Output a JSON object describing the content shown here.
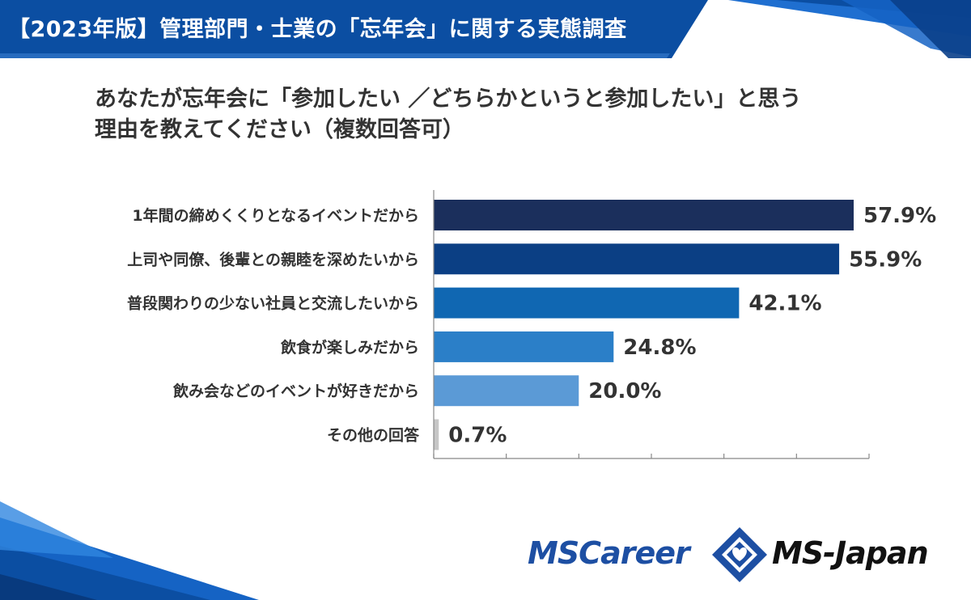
{
  "header": {
    "title": "【2023年版】管理部門・士業の「忘年会」に関する実態調査"
  },
  "question": {
    "line1": "あなたが忘年会に「参加したい ／どちらかというと参加したい」と思う",
    "line2": "理由を教えてください（複数回答可）"
  },
  "chart_data": {
    "type": "bar",
    "orientation": "horizontal",
    "categories": [
      "1年間の締めくくりとなるイベントだから",
      "上司や同僚、後輩との親睦を深めたいから",
      "普段関わりの少ない社員と交流したいから",
      "飲食が楽しみだから",
      "飲み会などのイベントが好きだから",
      "その他の回答"
    ],
    "values": [
      57.9,
      55.9,
      42.1,
      24.8,
      20.0,
      0.7
    ],
    "value_labels": [
      "57.9%",
      "55.9%",
      "42.1%",
      "24.8%",
      "20.0%",
      "0.7%"
    ],
    "colors": [
      "#1b2f5c",
      "#0b3f84",
      "#1067b2",
      "#2b7fc8",
      "#5b9ad6",
      "#c6c6c6"
    ],
    "xlim": [
      0,
      60
    ],
    "grid": false
  },
  "logos": {
    "mscareer": "MSCareer",
    "msjapan": "MS-Japan",
    "mark_icon": "ms-diamond-heart-icon"
  },
  "theme": {
    "header_blue": "#0b4ea2",
    "accent_blue": "#1d4fa3"
  }
}
